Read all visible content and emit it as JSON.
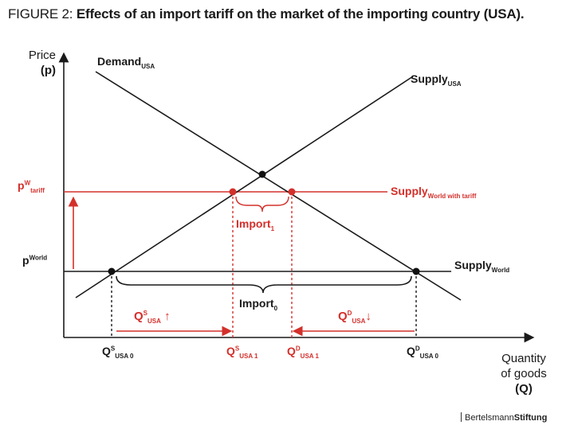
{
  "figure": {
    "prefix": "FIGURE 2:",
    "title": "Effects of an import tariff on the market of the importing country (USA)."
  },
  "axes": {
    "y_label_line1": "Price",
    "y_label_line2": "(p)",
    "x_label_line1": "Quantity",
    "x_label_line2": "of goods",
    "x_label_line3": "(Q)"
  },
  "curves": {
    "demand": {
      "main": "Demand",
      "sub": "USA"
    },
    "supply_usa": {
      "main": "Supply",
      "sub": "USA"
    },
    "supply_world_tariff": {
      "main": "Supply",
      "sub": "World with tariff"
    },
    "supply_world": {
      "main": "Supply",
      "sub": "World"
    }
  },
  "price_labels": {
    "p_tariff": {
      "main": "p",
      "sup": "W",
      "sub": "tariff"
    },
    "p_world": {
      "main": "p",
      "sup": "World"
    }
  },
  "quantity_labels": {
    "qs0": {
      "main": "Q",
      "sup": "S",
      "sub": "USA 0"
    },
    "qs1": {
      "main": "Q",
      "sup": "S",
      "sub": "USA 1"
    },
    "qd1": {
      "main": "Q",
      "sup": "D",
      "sub": "USA 1"
    },
    "qd0": {
      "main": "Q",
      "sup": "D",
      "sub": "USA 0"
    }
  },
  "annotations": {
    "import1": {
      "main": "Import",
      "sub": "1"
    },
    "import0": {
      "main": "Import",
      "sub": "0"
    },
    "qs_change": {
      "main": "Q",
      "sup": "S",
      "sub": "USA",
      "arrow": "↑"
    },
    "qd_change": {
      "main": "Q",
      "sup": "D",
      "sub": "USA",
      "arrow": "↓"
    }
  },
  "brand": {
    "light": "Bertelsmann",
    "bold": "Stiftung"
  },
  "colors": {
    "accent": "#d3302b",
    "ink": "#1a1a1a"
  }
}
